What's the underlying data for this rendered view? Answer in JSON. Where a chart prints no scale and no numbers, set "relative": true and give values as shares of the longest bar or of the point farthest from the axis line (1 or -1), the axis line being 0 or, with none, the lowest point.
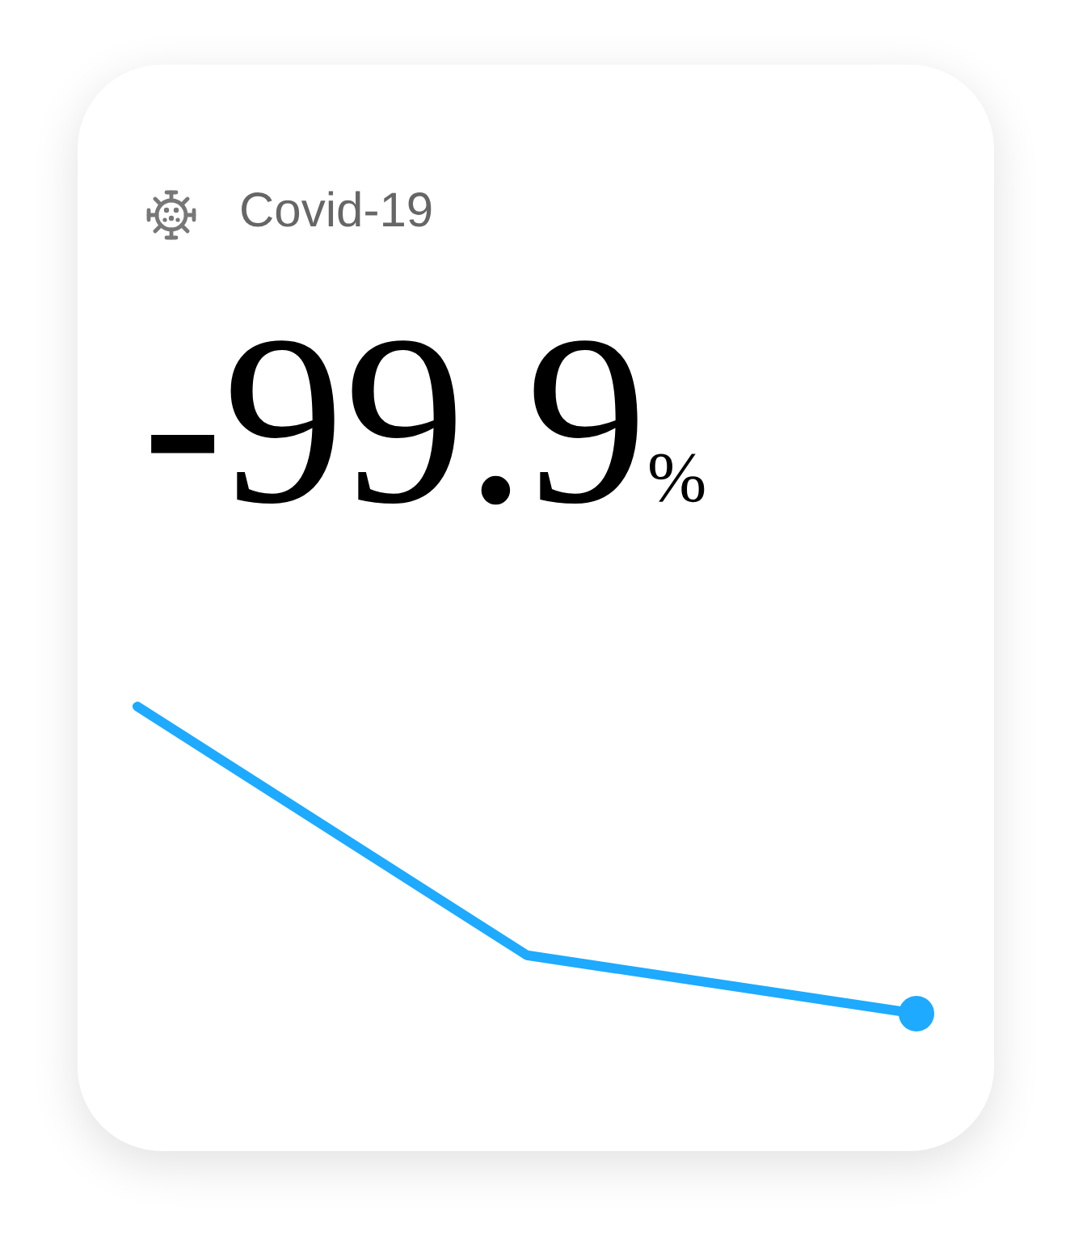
{
  "chart_data": {
    "type": "line",
    "title": "Covid-19",
    "annotations": [
      "-99.9%"
    ],
    "relative": true,
    "categories": [
      null,
      null,
      null
    ],
    "grid": false,
    "series": [
      {
        "color": "#1eaaff",
        "values": [
          1,
          0.19,
          0
        ],
        "line_style": "solid"
      }
    ]
  }
}
